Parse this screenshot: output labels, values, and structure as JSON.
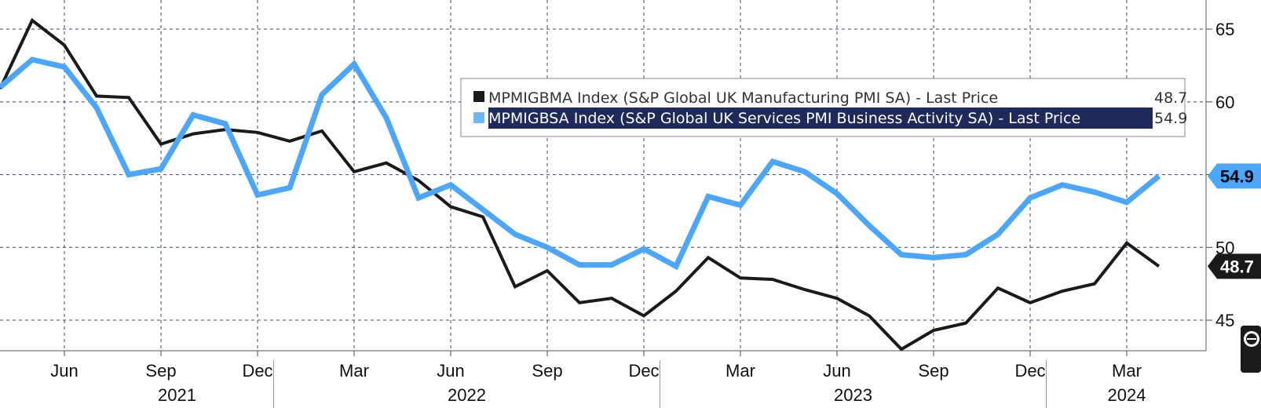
{
  "chart_data": {
    "type": "line",
    "x": [
      "2021-04",
      "2021-05",
      "2021-06",
      "2021-07",
      "2021-08",
      "2021-09",
      "2021-10",
      "2021-11",
      "2021-12",
      "2022-01",
      "2022-02",
      "2022-03",
      "2022-04",
      "2022-05",
      "2022-06",
      "2022-07",
      "2022-08",
      "2022-09",
      "2022-10",
      "2022-11",
      "2022-12",
      "2023-01",
      "2023-02",
      "2023-03",
      "2023-04",
      "2023-05",
      "2023-06",
      "2023-07",
      "2023-08",
      "2023-09",
      "2023-10",
      "2023-11",
      "2023-12",
      "2024-01",
      "2024-02",
      "2024-03",
      "2024-04"
    ],
    "series": [
      {
        "name": "MPMIGBMA Index (S&P Global UK Manufacturing PMI SA) - Last Price",
        "color": "#1a1a1a",
        "last": "48.7",
        "values": [
          60.9,
          65.6,
          63.9,
          60.4,
          60.3,
          57.1,
          57.8,
          58.1,
          57.9,
          57.3,
          58.0,
          55.2,
          55.8,
          54.6,
          52.8,
          52.1,
          47.3,
          48.4,
          46.2,
          46.5,
          45.3,
          47.0,
          49.3,
          47.9,
          47.8,
          47.1,
          46.5,
          45.3,
          43.0,
          44.3,
          44.8,
          47.2,
          46.2,
          47.0,
          47.5,
          50.3,
          48.7
        ]
      },
      {
        "name": "MPMIGBSA Index (S&P Global UK Services PMI Business Activity SA) - Last Price",
        "color": "#4aa6ff",
        "last": "54.9",
        "values": [
          61.0,
          62.9,
          62.4,
          59.6,
          55.0,
          55.4,
          59.1,
          58.5,
          53.6,
          54.1,
          60.5,
          62.6,
          58.9,
          53.4,
          54.3,
          52.6,
          50.9,
          50.0,
          48.8,
          48.8,
          49.9,
          48.7,
          53.5,
          52.9,
          55.9,
          55.2,
          53.7,
          51.5,
          49.5,
          49.3,
          49.5,
          50.9,
          53.4,
          54.3,
          53.8,
          53.1,
          54.9
        ]
      }
    ],
    "ylim": [
      42.9,
      67.0
    ],
    "yticks": [
      "45",
      "50",
      "55",
      "60",
      "65"
    ],
    "xtick_labels": [
      {
        "index": 2,
        "label": "Jun"
      },
      {
        "index": 5,
        "label": "Sep"
      },
      {
        "index": 8,
        "label": "Dec"
      },
      {
        "index": 11,
        "label": "Mar"
      },
      {
        "index": 14,
        "label": "Jun"
      },
      {
        "index": 17,
        "label": "Sep"
      },
      {
        "index": 20,
        "label": "Dec"
      },
      {
        "index": 23,
        "label": "Mar"
      },
      {
        "index": 26,
        "label": "Jun"
      },
      {
        "index": 29,
        "label": "Sep"
      },
      {
        "index": 32,
        "label": "Dec"
      },
      {
        "index": 35,
        "label": "Mar"
      }
    ],
    "years": [
      {
        "label": "2021",
        "center_index": 5.5
      },
      {
        "label": "2022",
        "center_index": 14.5
      },
      {
        "label": "2023",
        "center_index": 26.5
      },
      {
        "label": "2024",
        "center_index": 35.0
      }
    ],
    "year_boundaries": [
      8.5,
      20.5,
      32.5
    ],
    "grid": true,
    "legend_position": "top-right",
    "highlighted_series": 1
  }
}
